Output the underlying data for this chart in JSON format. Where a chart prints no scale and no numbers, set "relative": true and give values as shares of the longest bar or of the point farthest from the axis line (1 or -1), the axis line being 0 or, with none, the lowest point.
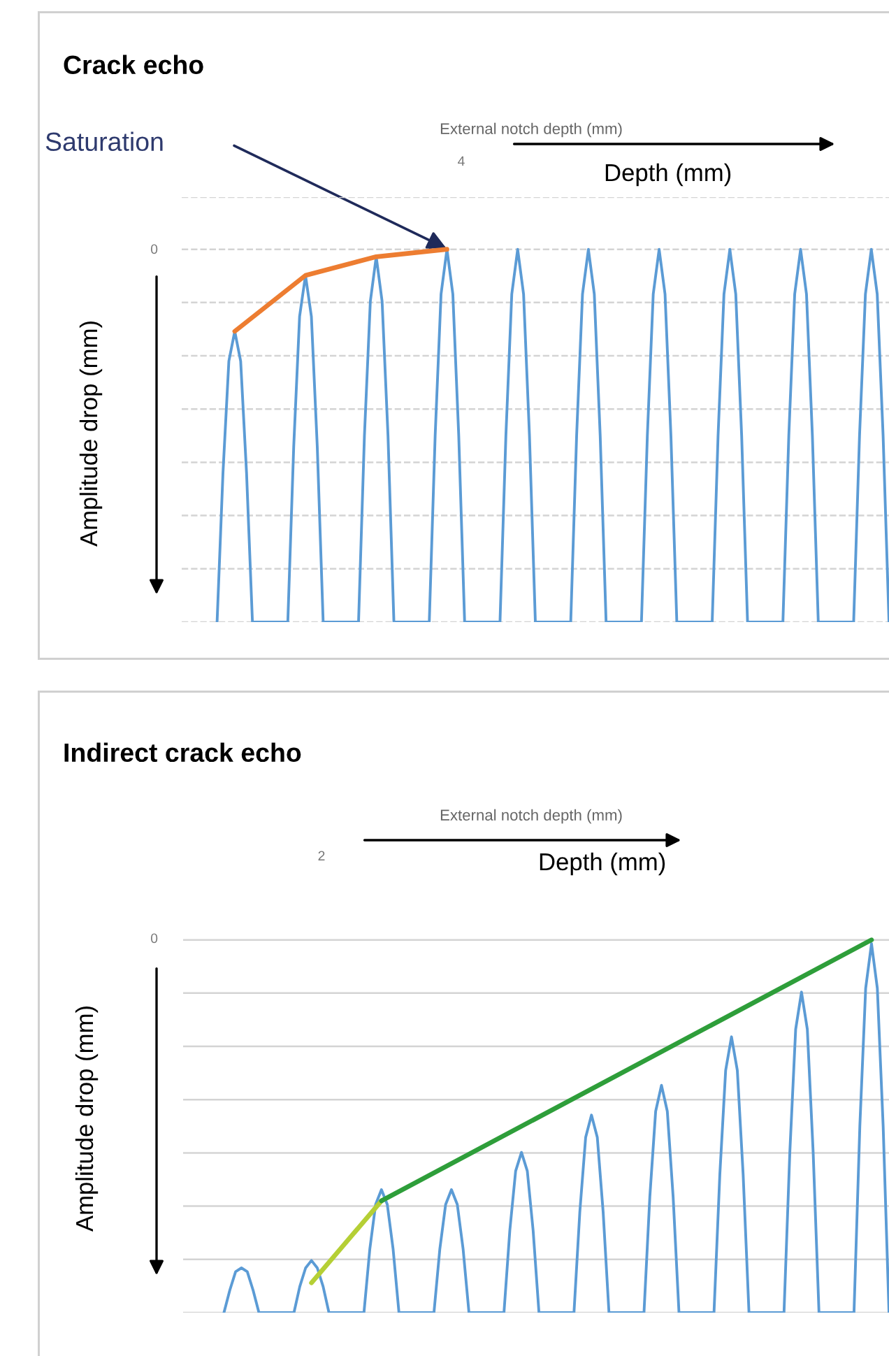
{
  "chart_data": [
    {
      "type": "line",
      "title": "Crack echo",
      "x2label": "External notch depth (mm)",
      "ylabel": "Amplitude drop (mm)",
      "relative": true,
      "grid": "y",
      "annotations": [
        "Depth (mm)",
        "0",
        "Saturation",
        "4"
      ],
      "categories": [
        null,
        null,
        null,
        null,
        null,
        null,
        null,
        null,
        null,
        null,
        null,
        null,
        null,
        null,
        null,
        null,
        null,
        null,
        null,
        null,
        null,
        null,
        null,
        null,
        null,
        null,
        null,
        null,
        null,
        null,
        null,
        null,
        null,
        null,
        null,
        null,
        null,
        null,
        null,
        null,
        null,
        null,
        null,
        null,
        null,
        null,
        null,
        null,
        null,
        null,
        null,
        null,
        null,
        null,
        null,
        null,
        null,
        null,
        null,
        null,
        null,
        null,
        null,
        null,
        null,
        null,
        null,
        null,
        null,
        null,
        null,
        null,
        null,
        null,
        null,
        null,
        null,
        null,
        null,
        null,
        null,
        null,
        null,
        null,
        null,
        null,
        null,
        null,
        null,
        null,
        null,
        null,
        null,
        null,
        null,
        null,
        null,
        null,
        null,
        null,
        null,
        null,
        null,
        null,
        null,
        null,
        null,
        null,
        null,
        null,
        null,
        null,
        null,
        null,
        null,
        null,
        null,
        null,
        null,
        null,
        null
      ],
      "series": [
        {
          "color": "#5b9bd5",
          "values": [
            null,
            null,
            null,
            null,
            null,
            null,
            0,
            0.4,
            0.7,
            0.78,
            0.7,
            0.4,
            0,
            null,
            null,
            null,
            null,
            null,
            0,
            0.47,
            0.82,
            0.93,
            0.82,
            0.47,
            0,
            null,
            null,
            null,
            null,
            null,
            0,
            0.5,
            0.86,
            0.98,
            0.86,
            0.5,
            0,
            null,
            null,
            null,
            null,
            null,
            0,
            0.5,
            0.88,
            1,
            0.88,
            0.5,
            0,
            null,
            null,
            null,
            null,
            null,
            0,
            0.5,
            0.88,
            1,
            0.88,
            0.5,
            0,
            null,
            null,
            null,
            null,
            null,
            0,
            0.5,
            0.88,
            1,
            0.88,
            0.5,
            0,
            null,
            null,
            null,
            null,
            null,
            0,
            0.5,
            0.88,
            1,
            0.88,
            0.5,
            0,
            null,
            null,
            null,
            null,
            null,
            0,
            0.5,
            0.88,
            1,
            0.88,
            0.5,
            0,
            null,
            null,
            null,
            null,
            null,
            0,
            0.5,
            0.88,
            1,
            0.88,
            0.5,
            0,
            null,
            null,
            null,
            null,
            null,
            0,
            0.5,
            0.88,
            1,
            0.88,
            0.5,
            0
          ]
        },
        {
          "color": "#ed7d31",
          "values": [
            null,
            null,
            null,
            null,
            null,
            null,
            null,
            null,
            null,
            0.78,
            null,
            null,
            null,
            null,
            null,
            null,
            null,
            null,
            null,
            null,
            null,
            0.93,
            null,
            null,
            null,
            null,
            null,
            null,
            null,
            null,
            null,
            null,
            null,
            0.98,
            null,
            null,
            null,
            null,
            null,
            null,
            null,
            null,
            null,
            null,
            null,
            1,
            null,
            null,
            null,
            null,
            null,
            null,
            null,
            null,
            null,
            null,
            null,
            null,
            null,
            null,
            null,
            null,
            null,
            null,
            null,
            null,
            null,
            null,
            null,
            null,
            null,
            null,
            null,
            null,
            null,
            null,
            null,
            null,
            null,
            null,
            null,
            null,
            null,
            null,
            null,
            null,
            null,
            null,
            null,
            null,
            null,
            null,
            null,
            null,
            null,
            null,
            null,
            null,
            null,
            null,
            null,
            null,
            null,
            null,
            null,
            null,
            null,
            null,
            null,
            null,
            null,
            null,
            null,
            null,
            null,
            null,
            null,
            null,
            null,
            null,
            null
          ]
        }
      ]
    },
    {
      "type": "line",
      "title": "Indirect crack echo",
      "x2label": "External notch depth (mm)",
      "ylabel": "Amplitude drop (mm)",
      "relative": true,
      "grid": "y",
      "annotations": [
        "Depth (mm)",
        "0",
        "2"
      ],
      "categories": [
        null,
        null,
        null,
        null,
        null,
        null,
        null,
        null,
        null,
        null,
        null,
        null,
        null,
        null,
        null,
        null,
        null,
        null,
        null,
        null,
        null,
        null,
        null,
        null,
        null,
        null,
        null,
        null,
        null,
        null,
        null,
        null,
        null,
        null,
        null,
        null,
        null,
        null,
        null,
        null,
        null,
        null,
        null,
        null,
        null,
        null,
        null,
        null,
        null,
        null,
        null,
        null,
        null,
        null,
        null,
        null,
        null,
        null,
        null,
        null,
        null,
        null,
        null,
        null,
        null,
        null,
        null,
        null,
        null,
        null,
        null,
        null,
        null,
        null,
        null,
        null,
        null,
        null,
        null,
        null,
        null,
        null,
        null,
        null,
        null,
        null,
        null,
        null,
        null,
        null,
        null,
        null,
        null,
        null,
        null,
        null,
        null,
        null,
        null,
        null,
        null,
        null,
        null,
        null,
        null,
        null,
        null,
        null,
        null,
        null,
        null,
        null,
        null,
        null,
        null,
        null,
        null,
        null,
        null,
        null,
        null,
        null
      ],
      "series": [
        {
          "color": "#5b9bd5",
          "values": [
            null,
            null,
            null,
            null,
            null,
            null,
            null,
            0,
            0.06,
            0.11,
            0.12,
            0.11,
            0.06,
            0,
            null,
            null,
            null,
            null,
            null,
            0,
            0.07,
            0.12,
            0.14,
            0.12,
            0.07,
            0,
            null,
            null,
            null,
            null,
            null,
            0,
            0.17,
            0.29,
            0.33,
            0.29,
            0.17,
            0,
            null,
            null,
            null,
            null,
            null,
            0,
            0.17,
            0.29,
            0.33,
            0.29,
            0.17,
            0,
            null,
            null,
            null,
            null,
            null,
            0,
            0.22,
            0.38,
            0.43,
            0.38,
            0.22,
            0,
            null,
            null,
            null,
            null,
            null,
            0,
            0.27,
            0.47,
            0.53,
            0.47,
            0.27,
            0,
            null,
            null,
            null,
            null,
            null,
            0,
            0.31,
            0.54,
            0.61,
            0.54,
            0.31,
            0,
            null,
            null,
            null,
            null,
            null,
            0,
            0.37,
            0.65,
            0.74,
            0.65,
            0.37,
            0,
            null,
            null,
            null,
            null,
            null,
            0,
            0.43,
            0.76,
            0.86,
            0.76,
            0.43,
            0,
            null,
            null,
            null,
            null,
            null,
            0,
            0.5,
            0.87,
            0.99,
            0.87,
            0.5,
            0
          ]
        },
        {
          "color": "#b5cf35",
          "values": [
            null,
            null,
            null,
            null,
            null,
            null,
            null,
            null,
            null,
            null,
            null,
            null,
            null,
            null,
            null,
            null,
            null,
            null,
            null,
            null,
            null,
            null,
            0.08,
            null,
            null,
            null,
            null,
            null,
            null,
            null,
            null,
            null,
            null,
            null,
            0.3,
            null,
            null,
            null,
            null,
            null,
            null,
            null,
            null,
            null,
            null,
            null,
            null,
            null,
            null,
            null,
            null,
            null,
            null,
            null,
            null,
            null,
            null,
            null,
            null,
            null,
            null,
            null,
            null,
            null,
            null,
            null,
            null,
            null,
            null,
            null,
            null,
            null,
            null,
            null,
            null,
            null,
            null,
            null,
            null,
            null,
            null,
            null,
            null,
            null,
            null,
            null,
            null,
            null,
            null,
            null,
            null,
            null,
            null,
            null,
            null,
            null,
            null,
            null,
            null,
            null,
            null,
            null,
            null,
            null,
            null,
            null,
            null,
            null,
            null,
            null,
            null,
            null,
            null,
            null,
            null,
            null,
            null,
            null,
            null,
            null,
            null,
            null
          ]
        },
        {
          "color": "#2e9e3a",
          "values": [
            null,
            null,
            null,
            null,
            null,
            null,
            null,
            null,
            null,
            null,
            null,
            null,
            null,
            null,
            null,
            null,
            null,
            null,
            null,
            null,
            null,
            null,
            null,
            null,
            null,
            null,
            null,
            null,
            null,
            null,
            null,
            null,
            null,
            null,
            0.3,
            null,
            null,
            null,
            null,
            null,
            null,
            null,
            null,
            null,
            null,
            null,
            null,
            null,
            null,
            null,
            null,
            null,
            null,
            null,
            null,
            null,
            null,
            null,
            null,
            null,
            null,
            null,
            null,
            null,
            null,
            null,
            null,
            null,
            null,
            null,
            null,
            null,
            null,
            null,
            null,
            null,
            null,
            null,
            null,
            null,
            null,
            null,
            null,
            null,
            null,
            null,
            null,
            null,
            null,
            null,
            null,
            null,
            null,
            null,
            null,
            null,
            null,
            null,
            null,
            null,
            null,
            null,
            null,
            null,
            null,
            null,
            null,
            null,
            null,
            null,
            null,
            null,
            null,
            null,
            null,
            null,
            null,
            null,
            1,
            null,
            null,
            null
          ]
        }
      ]
    }
  ]
}
